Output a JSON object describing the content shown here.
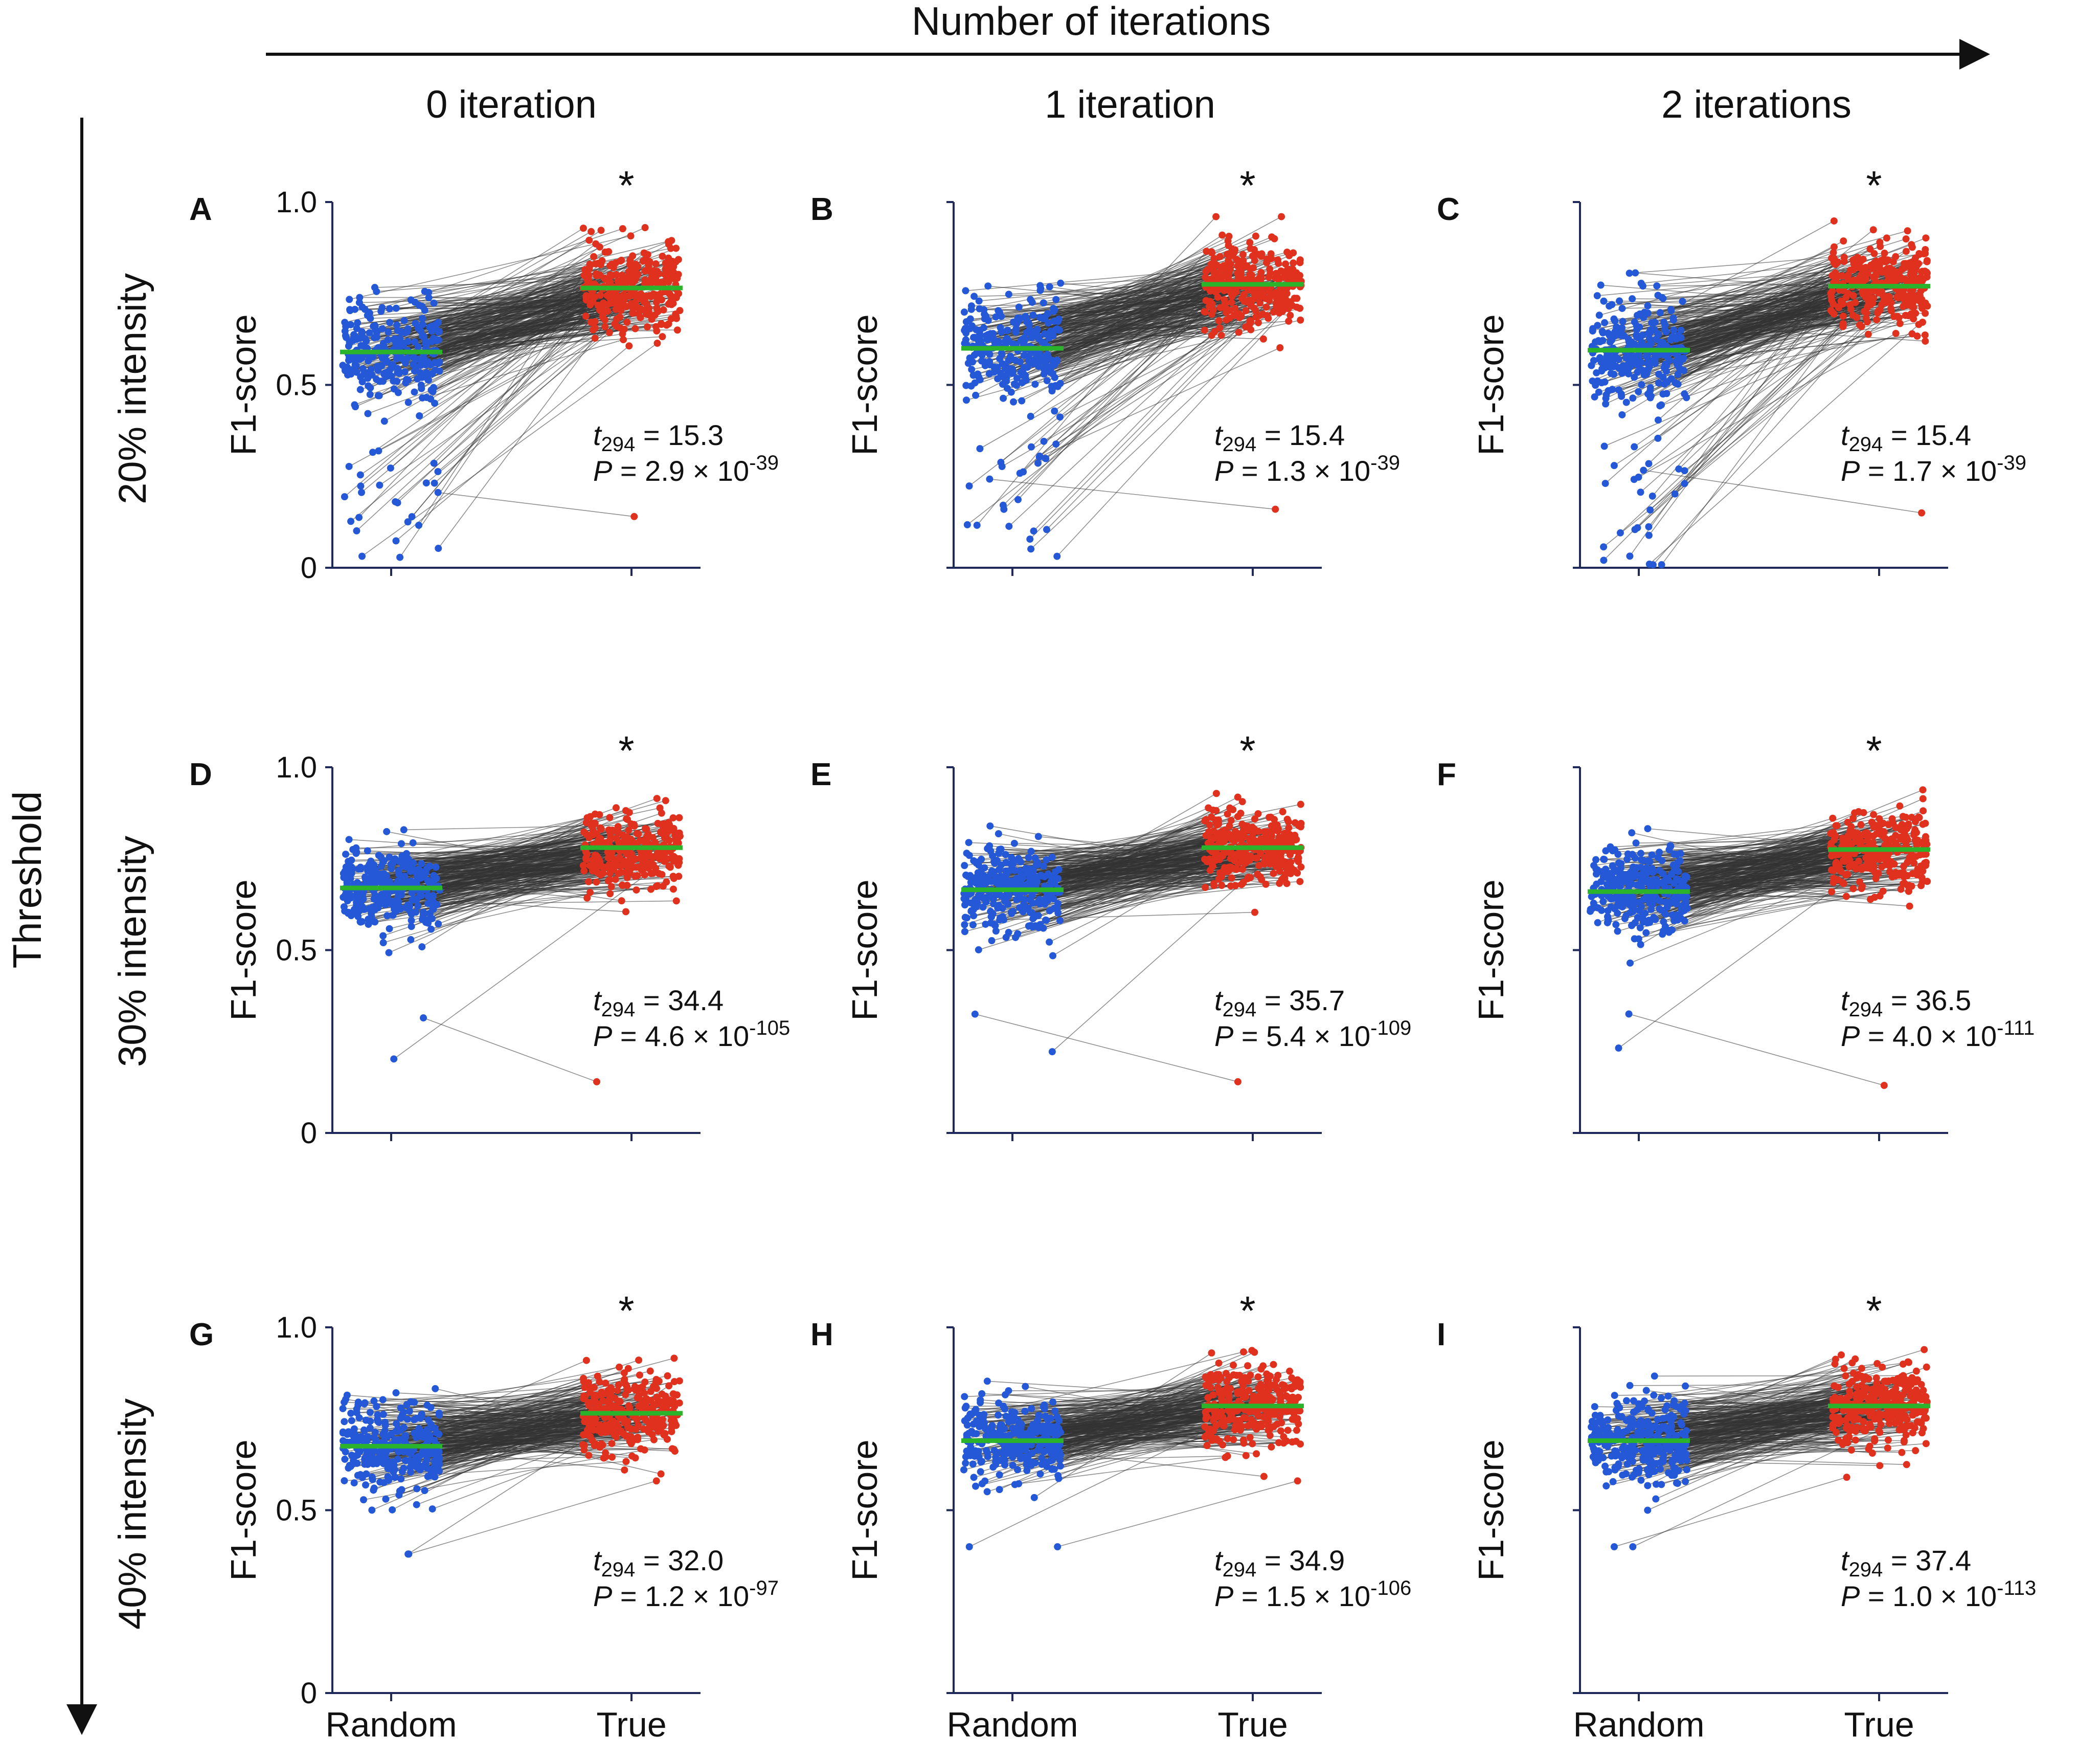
{
  "figure": {
    "top_axis_label": "Number of iterations",
    "left_axis_label": "Threshold",
    "column_titles": [
      "0 iteration",
      "1 iteration",
      "2 iterations"
    ],
    "row_titles": [
      "20% intensity",
      "30% intensity",
      "40% intensity"
    ],
    "y_axis_title": "F1-score",
    "significance_marker": "*",
    "colors": {
      "random": "#2458d6",
      "true": "#e0301e",
      "mean_line": "#2bb32b",
      "pair_line": "#333333",
      "axis": "#1f2a5a"
    }
  },
  "chart_data": [
    {
      "panel": "A",
      "type": "scatter",
      "row": "20% intensity",
      "column": "0 iteration",
      "x_categories": [
        "Random",
        "True"
      ],
      "ylabel": "F1-score",
      "ylim": [
        0,
        1
      ],
      "yticks": [
        "0",
        "0.5",
        "1.0"
      ],
      "n_pairs": 295,
      "random_mean": 0.59,
      "random_spread": 0.13,
      "random_low_cluster": [
        0.0,
        0.33
      ],
      "true_mean": 0.765,
      "true_spread": 0.11,
      "true_min": 0.14,
      "stat_df": "294",
      "t_value": "15.3",
      "p_mantissa": "2.9",
      "p_exponent": "-39",
      "significant": true
    },
    {
      "panel": "B",
      "type": "scatter",
      "row": "20% intensity",
      "column": "1 iteration",
      "x_categories": [
        "Random",
        "True"
      ],
      "ylabel": "F1-score",
      "ylim": [
        0,
        1
      ],
      "yticks": [
        "0",
        "0.5",
        "1.0"
      ],
      "n_pairs": 295,
      "random_mean": 0.6,
      "random_spread": 0.13,
      "random_low_cluster": [
        0.0,
        0.35
      ],
      "true_mean": 0.775,
      "true_spread": 0.11,
      "true_min": 0.16,
      "stat_df": "294",
      "t_value": "15.4",
      "p_mantissa": "1.3",
      "p_exponent": "-39",
      "significant": true
    },
    {
      "panel": "C",
      "type": "scatter",
      "row": "20% intensity",
      "column": "2 iterations",
      "x_categories": [
        "Random",
        "True"
      ],
      "ylabel": "F1-score",
      "ylim": [
        0,
        1
      ],
      "yticks": [
        "0",
        "0.5",
        "1.0"
      ],
      "n_pairs": 295,
      "random_mean": 0.595,
      "random_spread": 0.13,
      "random_low_cluster": [
        0.0,
        0.35
      ],
      "true_mean": 0.77,
      "true_spread": 0.11,
      "true_min": 0.15,
      "stat_df": "294",
      "t_value": "15.4",
      "p_mantissa": "1.7",
      "p_exponent": "-39",
      "significant": true
    },
    {
      "panel": "D",
      "type": "scatter",
      "row": "30% intensity",
      "column": "0 iteration",
      "x_categories": [
        "Random",
        "True"
      ],
      "ylabel": "F1-score",
      "ylim": [
        0,
        1
      ],
      "yticks": [
        "0",
        "0.5",
        "1.0"
      ],
      "n_pairs": 295,
      "random_mean": 0.67,
      "random_spread": 0.11,
      "random_low_cluster": [
        0.19,
        0.34
      ],
      "true_mean": 0.78,
      "true_spread": 0.1,
      "true_min": 0.14,
      "stat_df": "294",
      "t_value": "34.4",
      "p_mantissa": "4.6",
      "p_exponent": "-105",
      "significant": true
    },
    {
      "panel": "E",
      "type": "scatter",
      "row": "30% intensity",
      "column": "1 iteration",
      "x_categories": [
        "Random",
        "True"
      ],
      "ylabel": "F1-score",
      "ylim": [
        0,
        1
      ],
      "yticks": [
        "0",
        "0.5",
        "1.0"
      ],
      "n_pairs": 295,
      "random_mean": 0.665,
      "random_spread": 0.11,
      "random_low_cluster": [
        0.19,
        0.34
      ],
      "true_mean": 0.78,
      "true_spread": 0.1,
      "true_min": 0.14,
      "stat_df": "294",
      "t_value": "35.7",
      "p_mantissa": "5.4",
      "p_exponent": "-109",
      "significant": true
    },
    {
      "panel": "F",
      "type": "scatter",
      "row": "30% intensity",
      "column": "2 iterations",
      "x_categories": [
        "Random",
        "True"
      ],
      "ylabel": "F1-score",
      "ylim": [
        0,
        1
      ],
      "yticks": [
        "0",
        "0.5",
        "1.0"
      ],
      "n_pairs": 295,
      "random_mean": 0.66,
      "random_spread": 0.11,
      "random_low_cluster": [
        0.18,
        0.33
      ],
      "true_mean": 0.775,
      "true_spread": 0.1,
      "true_min": 0.13,
      "stat_df": "294",
      "t_value": "36.5",
      "p_mantissa": "4.0",
      "p_exponent": "-111",
      "significant": true
    },
    {
      "panel": "G",
      "type": "scatter",
      "row": "40% intensity",
      "column": "0 iteration",
      "x_categories": [
        "Random",
        "True"
      ],
      "ylabel": "F1-score",
      "ylim": [
        0,
        1
      ],
      "yticks": [
        "0",
        "0.5",
        "1.0"
      ],
      "n_pairs": 295,
      "random_mean": 0.675,
      "random_spread": 0.11,
      "random_low_cluster": [
        0.38,
        0.38
      ],
      "true_mean": 0.765,
      "true_spread": 0.1,
      "true_min": 0.58,
      "stat_df": "294",
      "t_value": "32.0",
      "p_mantissa": "1.2",
      "p_exponent": "-97",
      "significant": true
    },
    {
      "panel": "H",
      "type": "scatter",
      "row": "40% intensity",
      "column": "1 iteration",
      "x_categories": [
        "Random",
        "True"
      ],
      "ylabel": "F1-score",
      "ylim": [
        0,
        1
      ],
      "yticks": [
        "0",
        "0.5",
        "1.0"
      ],
      "n_pairs": 295,
      "random_mean": 0.69,
      "random_spread": 0.1,
      "random_low_cluster": [
        0.4,
        0.4
      ],
      "true_mean": 0.785,
      "true_spread": 0.1,
      "true_min": 0.58,
      "stat_df": "294",
      "t_value": "34.9",
      "p_mantissa": "1.5",
      "p_exponent": "-106",
      "significant": true
    },
    {
      "panel": "I",
      "type": "scatter",
      "row": "40% intensity",
      "column": "2 iterations",
      "x_categories": [
        "Random",
        "True"
      ],
      "ylabel": "F1-score",
      "ylim": [
        0,
        1
      ],
      "yticks": [
        "0",
        "0.5",
        "1.0"
      ],
      "n_pairs": 295,
      "random_mean": 0.69,
      "random_spread": 0.1,
      "random_low_cluster": [
        0.4,
        0.4
      ],
      "true_mean": 0.785,
      "true_spread": 0.1,
      "true_min": 0.59,
      "stat_df": "294",
      "t_value": "37.4",
      "p_mantissa": "1.0",
      "p_exponent": "-113",
      "significant": true
    }
  ]
}
